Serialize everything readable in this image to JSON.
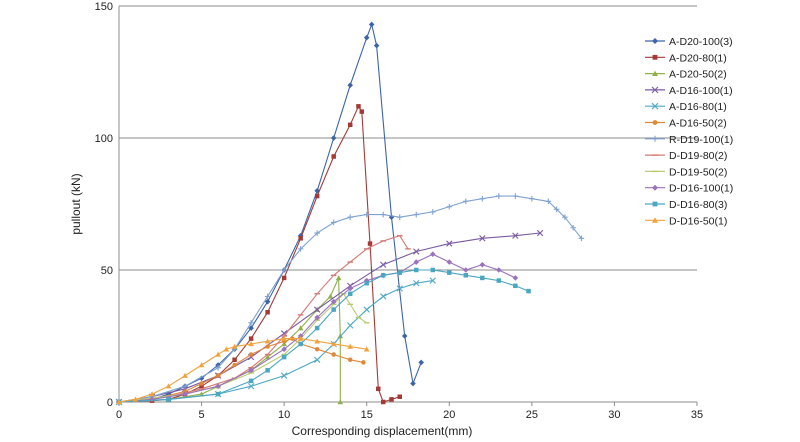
{
  "chart_data": {
    "type": "scatter",
    "title": "",
    "xlabel": "Corresponding displacement(mm)",
    "ylabel": "pullout (kN)",
    "xlim": [
      0,
      35
    ],
    "ylim": [
      0,
      150
    ],
    "x_ticks": [
      "0",
      "5",
      "10",
      "15",
      "20",
      "25",
      "30",
      "35"
    ],
    "y_ticks": [
      "0",
      "50",
      "100",
      "150"
    ],
    "grid": "horizontal",
    "legend_position": "right",
    "series": [
      {
        "name": "A-D20-100(3)",
        "color": "#3d64a8",
        "marker": "diamond",
        "points": [
          [
            0,
            0
          ],
          [
            2,
            1
          ],
          [
            3,
            3
          ],
          [
            4,
            6
          ],
          [
            5,
            9
          ],
          [
            6,
            14
          ],
          [
            7,
            20
          ],
          [
            8,
            28
          ],
          [
            9,
            38
          ],
          [
            10,
            50
          ],
          [
            11,
            63
          ],
          [
            12,
            80
          ],
          [
            13,
            100
          ],
          [
            14,
            120
          ],
          [
            15,
            138
          ],
          [
            15.3,
            143
          ],
          [
            15.6,
            135
          ],
          [
            16.5,
            70
          ],
          [
            17.3,
            25
          ],
          [
            17.8,
            7
          ],
          [
            18.3,
            15
          ]
        ]
      },
      {
        "name": "A-D20-80(1)",
        "color": "#a33a36",
        "marker": "square",
        "points": [
          [
            0,
            0
          ],
          [
            2,
            0.5
          ],
          [
            3,
            1
          ],
          [
            4,
            3
          ],
          [
            5,
            6
          ],
          [
            6,
            10
          ],
          [
            7,
            16
          ],
          [
            8,
            24
          ],
          [
            9,
            34
          ],
          [
            10,
            47
          ],
          [
            11,
            62
          ],
          [
            12,
            78
          ],
          [
            13,
            93
          ],
          [
            14,
            105
          ],
          [
            14.5,
            112
          ],
          [
            14.7,
            110
          ],
          [
            15.2,
            60
          ],
          [
            15.7,
            5
          ],
          [
            16,
            0
          ],
          [
            16.5,
            1
          ],
          [
            17,
            2
          ]
        ]
      },
      {
        "name": "A-D20-50(2)",
        "color": "#8fb04b",
        "marker": "triangle",
        "points": [
          [
            0,
            0
          ],
          [
            3,
            1
          ],
          [
            5,
            3
          ],
          [
            6,
            6
          ],
          [
            8,
            12
          ],
          [
            9,
            17
          ],
          [
            10,
            22
          ],
          [
            11,
            28
          ],
          [
            12,
            35
          ],
          [
            12.8,
            40
          ],
          [
            13.3,
            47
          ],
          [
            13.4,
            25
          ],
          [
            13.4,
            0
          ]
        ]
      },
      {
        "name": "A-D16-100(1)",
        "color": "#7b5aa3",
        "marker": "x",
        "points": [
          [
            0,
            0
          ],
          [
            2,
            2
          ],
          [
            4,
            5
          ],
          [
            6,
            10
          ],
          [
            8,
            17
          ],
          [
            10,
            26
          ],
          [
            12,
            35
          ],
          [
            14,
            44
          ],
          [
            16,
            52
          ],
          [
            18,
            57
          ],
          [
            20,
            60
          ],
          [
            22,
            62
          ],
          [
            24,
            63
          ],
          [
            25.5,
            64
          ]
        ]
      },
      {
        "name": "A-D16-80(1)",
        "color": "#4fa8c6",
        "marker": "x",
        "points": [
          [
            0,
            0
          ],
          [
            3,
            1
          ],
          [
            6,
            3
          ],
          [
            8,
            6
          ],
          [
            10,
            10
          ],
          [
            12,
            16
          ],
          [
            13,
            22
          ],
          [
            14,
            29
          ],
          [
            15,
            35
          ],
          [
            16,
            40
          ],
          [
            17,
            43
          ],
          [
            18,
            45
          ],
          [
            19,
            46
          ]
        ]
      },
      {
        "name": "A-D16-50(2)",
        "color": "#e0883a",
        "marker": "circle",
        "points": [
          [
            0,
            0
          ],
          [
            2,
            1
          ],
          [
            4,
            4
          ],
          [
            5,
            7
          ],
          [
            6,
            10
          ],
          [
            7,
            14
          ],
          [
            8,
            18
          ],
          [
            9,
            21
          ],
          [
            10,
            23
          ],
          [
            10.5,
            24
          ],
          [
            11,
            22
          ],
          [
            12,
            20
          ],
          [
            13,
            18
          ],
          [
            14,
            16
          ],
          [
            14.8,
            15
          ]
        ]
      },
      {
        "name": "R-D19-100(1)",
        "color": "#7fa2d0",
        "marker": "plus",
        "points": [
          [
            0,
            0
          ],
          [
            2,
            2
          ],
          [
            4,
            6
          ],
          [
            6,
            13
          ],
          [
            7,
            20
          ],
          [
            8,
            30
          ],
          [
            9,
            40
          ],
          [
            10,
            50
          ],
          [
            11,
            58
          ],
          [
            12,
            64
          ],
          [
            13,
            68
          ],
          [
            14,
            70
          ],
          [
            15,
            71
          ],
          [
            16,
            71
          ],
          [
            17,
            70
          ],
          [
            18,
            71
          ],
          [
            19,
            72
          ],
          [
            20,
            74
          ],
          [
            21,
            76
          ],
          [
            22,
            77
          ],
          [
            23,
            78
          ],
          [
            24,
            78
          ],
          [
            25,
            77
          ],
          [
            26,
            76
          ],
          [
            26.5,
            73
          ],
          [
            27,
            70
          ],
          [
            27.5,
            66
          ],
          [
            28,
            62
          ]
        ]
      },
      {
        "name": "D-D19-80(2)",
        "color": "#d67874",
        "marker": "dash",
        "points": [
          [
            0,
            0
          ],
          [
            3,
            2
          ],
          [
            5,
            5
          ],
          [
            7,
            9
          ],
          [
            8,
            13
          ],
          [
            9,
            18
          ],
          [
            10,
            25
          ],
          [
            11,
            33
          ],
          [
            12,
            41
          ],
          [
            13,
            48
          ],
          [
            14,
            53
          ],
          [
            15,
            58
          ],
          [
            16,
            61
          ],
          [
            17,
            63
          ],
          [
            17.5,
            58
          ]
        ]
      },
      {
        "name": "D-D19-50(2)",
        "color": "#b9cc72",
        "marker": "dash",
        "points": [
          [
            0,
            0
          ],
          [
            4,
            3
          ],
          [
            6,
            6
          ],
          [
            8,
            11
          ],
          [
            10,
            18
          ],
          [
            11,
            24
          ],
          [
            12,
            31
          ],
          [
            13,
            37
          ],
          [
            13.6,
            41
          ],
          [
            14,
            37
          ],
          [
            14.5,
            32
          ],
          [
            15,
            30
          ]
        ]
      },
      {
        "name": "D-D16-100(1)",
        "color": "#9b72bd",
        "marker": "diamond",
        "points": [
          [
            0,
            0
          ],
          [
            2,
            1
          ],
          [
            4,
            3
          ],
          [
            6,
            6
          ],
          [
            8,
            12
          ],
          [
            10,
            20
          ],
          [
            11,
            25
          ],
          [
            12,
            32
          ],
          [
            13,
            38
          ],
          [
            14,
            43
          ],
          [
            15,
            46
          ],
          [
            16,
            48
          ],
          [
            17,
            49
          ],
          [
            18,
            53
          ],
          [
            19,
            56
          ],
          [
            20,
            53
          ],
          [
            21,
            50
          ],
          [
            22,
            52
          ],
          [
            23,
            50
          ],
          [
            24,
            47
          ]
        ]
      },
      {
        "name": "D-D16-80(3)",
        "color": "#4aa6c2",
        "marker": "square",
        "points": [
          [
            0,
            0
          ],
          [
            3,
            1
          ],
          [
            6,
            3
          ],
          [
            8,
            8
          ],
          [
            9,
            12
          ],
          [
            10,
            17
          ],
          [
            11,
            22
          ],
          [
            12,
            28
          ],
          [
            13,
            35
          ],
          [
            14,
            41
          ],
          [
            15,
            45
          ],
          [
            16,
            48
          ],
          [
            17,
            49
          ],
          [
            18,
            50
          ],
          [
            19,
            50
          ],
          [
            20,
            49
          ],
          [
            21,
            48
          ],
          [
            22,
            47
          ],
          [
            23,
            46
          ],
          [
            24,
            44
          ],
          [
            24.8,
            42
          ]
        ]
      },
      {
        "name": "D-D16-50(1)",
        "color": "#f0a33c",
        "marker": "triangle",
        "points": [
          [
            0,
            0
          ],
          [
            1,
            1
          ],
          [
            2,
            3
          ],
          [
            3,
            6
          ],
          [
            4,
            10
          ],
          [
            5,
            14
          ],
          [
            6,
            18
          ],
          [
            6.5,
            20
          ],
          [
            7,
            21
          ],
          [
            8,
            22
          ],
          [
            9,
            23
          ],
          [
            10,
            24
          ],
          [
            11,
            24
          ],
          [
            12,
            23
          ],
          [
            13,
            22
          ],
          [
            14,
            21
          ],
          [
            15,
            20
          ]
        ]
      }
    ]
  }
}
